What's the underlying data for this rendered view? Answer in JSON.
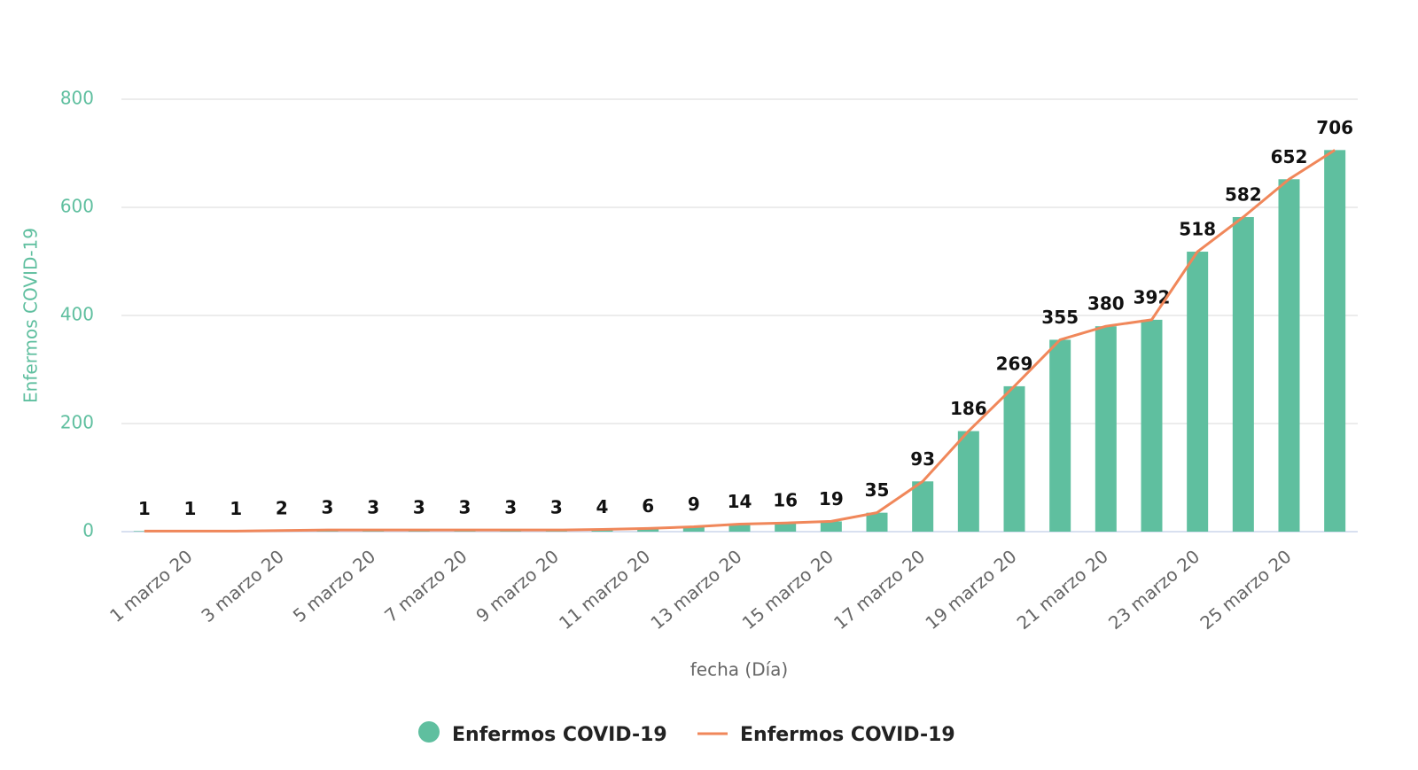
{
  "chart_data": {
    "type": "bar",
    "x_label": "fecha (Día)",
    "y_label": "Enfermos COVID-19",
    "categories": [
      "1 marzo 20",
      null,
      "3 marzo 20",
      null,
      "5 marzo 20",
      null,
      "7 marzo 20",
      null,
      "9 marzo 20",
      null,
      "11 marzo 20",
      null,
      "13 marzo 20",
      null,
      "15 marzo 20",
      null,
      "17 marzo 20",
      null,
      "19 marzo 20",
      null,
      "21 marzo 20",
      null,
      "23 marzo 20",
      null,
      "25 marzo 20",
      null,
      null
    ],
    "series": [
      {
        "name": "Enfermos COVID-19",
        "type": "bar",
        "color": "#5fbf9f",
        "values": [
          1,
          1,
          1,
          2,
          3,
          3,
          3,
          3,
          3,
          3,
          4,
          6,
          9,
          14,
          16,
          19,
          35,
          93,
          186,
          269,
          355,
          380,
          392,
          518,
          582,
          652,
          706
        ]
      },
      {
        "name": "Enfermos COVID-19",
        "type": "line",
        "color": "#f0875a",
        "values": [
          1,
          1,
          1,
          2,
          3,
          3,
          3,
          3,
          3,
          3,
          4,
          6,
          9,
          14,
          16,
          19,
          35,
          93,
          186,
          269,
          355,
          380,
          392,
          518,
          582,
          652,
          706
        ]
      }
    ],
    "ylim": [
      0,
      800
    ],
    "yticks": [
      0,
      200,
      400,
      600,
      800
    ],
    "grid": true,
    "legend": "bottom"
  }
}
